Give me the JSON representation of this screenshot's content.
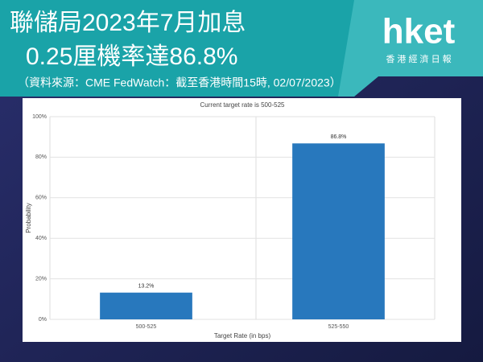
{
  "header": {
    "title_lines": [
      "聯儲局2023年7月加息",
      "0.25厘機率達86.8%"
    ],
    "source": "（資料來源：CME FedWatch：截至香港時間15時, 02/07/2023）",
    "logo": "hket",
    "logo_sub": "香 港 經 濟 日 報"
  },
  "chart_data": {
    "type": "bar",
    "title": "Current target rate is 500-525",
    "categories": [
      "500-525",
      "525-550"
    ],
    "values": [
      13.2,
      86.8
    ],
    "value_labels": [
      "13.2%",
      "86.8%"
    ],
    "color": "#2878bd",
    "x_label": "Target Rate (in bps)",
    "y_label": "Probability",
    "ylim": [
      0,
      100
    ],
    "yticks": [
      {
        "value": 0,
        "label": "0%"
      },
      {
        "value": 20,
        "label": "20%"
      },
      {
        "value": 40,
        "label": "40%"
      },
      {
        "value": 60,
        "label": "60%"
      },
      {
        "value": 80,
        "label": "80%"
      },
      {
        "value": 100,
        "label": "100%"
      }
    ],
    "grid": true
  }
}
